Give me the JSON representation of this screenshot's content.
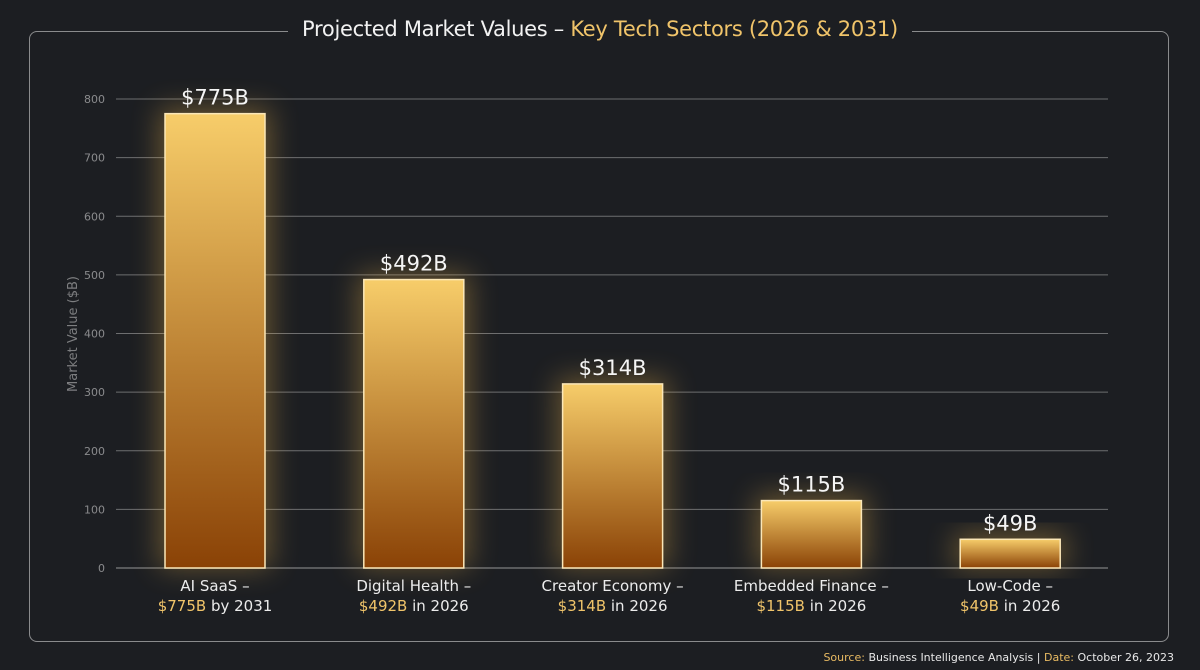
{
  "title": {
    "main": "Projected Market Values – ",
    "highlight": "Key Tech Sectors (2026 & 2031)"
  },
  "footer": {
    "source_label": "Source:",
    "source_value": "Business Intelligence Analysis",
    "separator": "|",
    "date_label": "Date:",
    "date_value": "October 26, 2023"
  },
  "colors": {
    "background": "#1c1e22",
    "accent": "#f0c46a",
    "bar_top": "#f7cd6a",
    "bar_bottom": "#8a4206",
    "bar_border": "#fbe7b8",
    "grid": "#6d6e70",
    "tick_text": "#8a8b8d"
  },
  "chart_data": {
    "type": "bar",
    "title": "Projected Market Values – Key Tech Sectors (2026 & 2031)",
    "xlabel": "",
    "ylabel": "Market Value ($B)",
    "ylim": [
      0,
      800
    ],
    "yticks": [
      0,
      100,
      200,
      300,
      400,
      500,
      600,
      700,
      800
    ],
    "grid": true,
    "categories": [
      "AI SaaS",
      "Digital Health",
      "Creator Economy",
      "Embedded Finance",
      "Low-Code"
    ],
    "values": [
      775,
      492,
      314,
      115,
      49
    ],
    "data_labels": [
      "$775B",
      "$492B",
      "$314B",
      "$115B",
      "$49B"
    ],
    "category_labels": [
      {
        "line1": "AI SaaS –",
        "amount": "$775B",
        "suffix": " by 2031"
      },
      {
        "line1": "Digital Health –",
        "amount": "$492B",
        "suffix": " in 2026"
      },
      {
        "line1": "Creator Economy –",
        "amount": "$314B",
        "suffix": " in 2026"
      },
      {
        "line1": "Embedded Finance –",
        "amount": "$115B",
        "suffix": " in 2026"
      },
      {
        "line1": "Low-Code –",
        "amount": "$49B",
        "suffix": " in 2026"
      }
    ],
    "legend": "none"
  }
}
